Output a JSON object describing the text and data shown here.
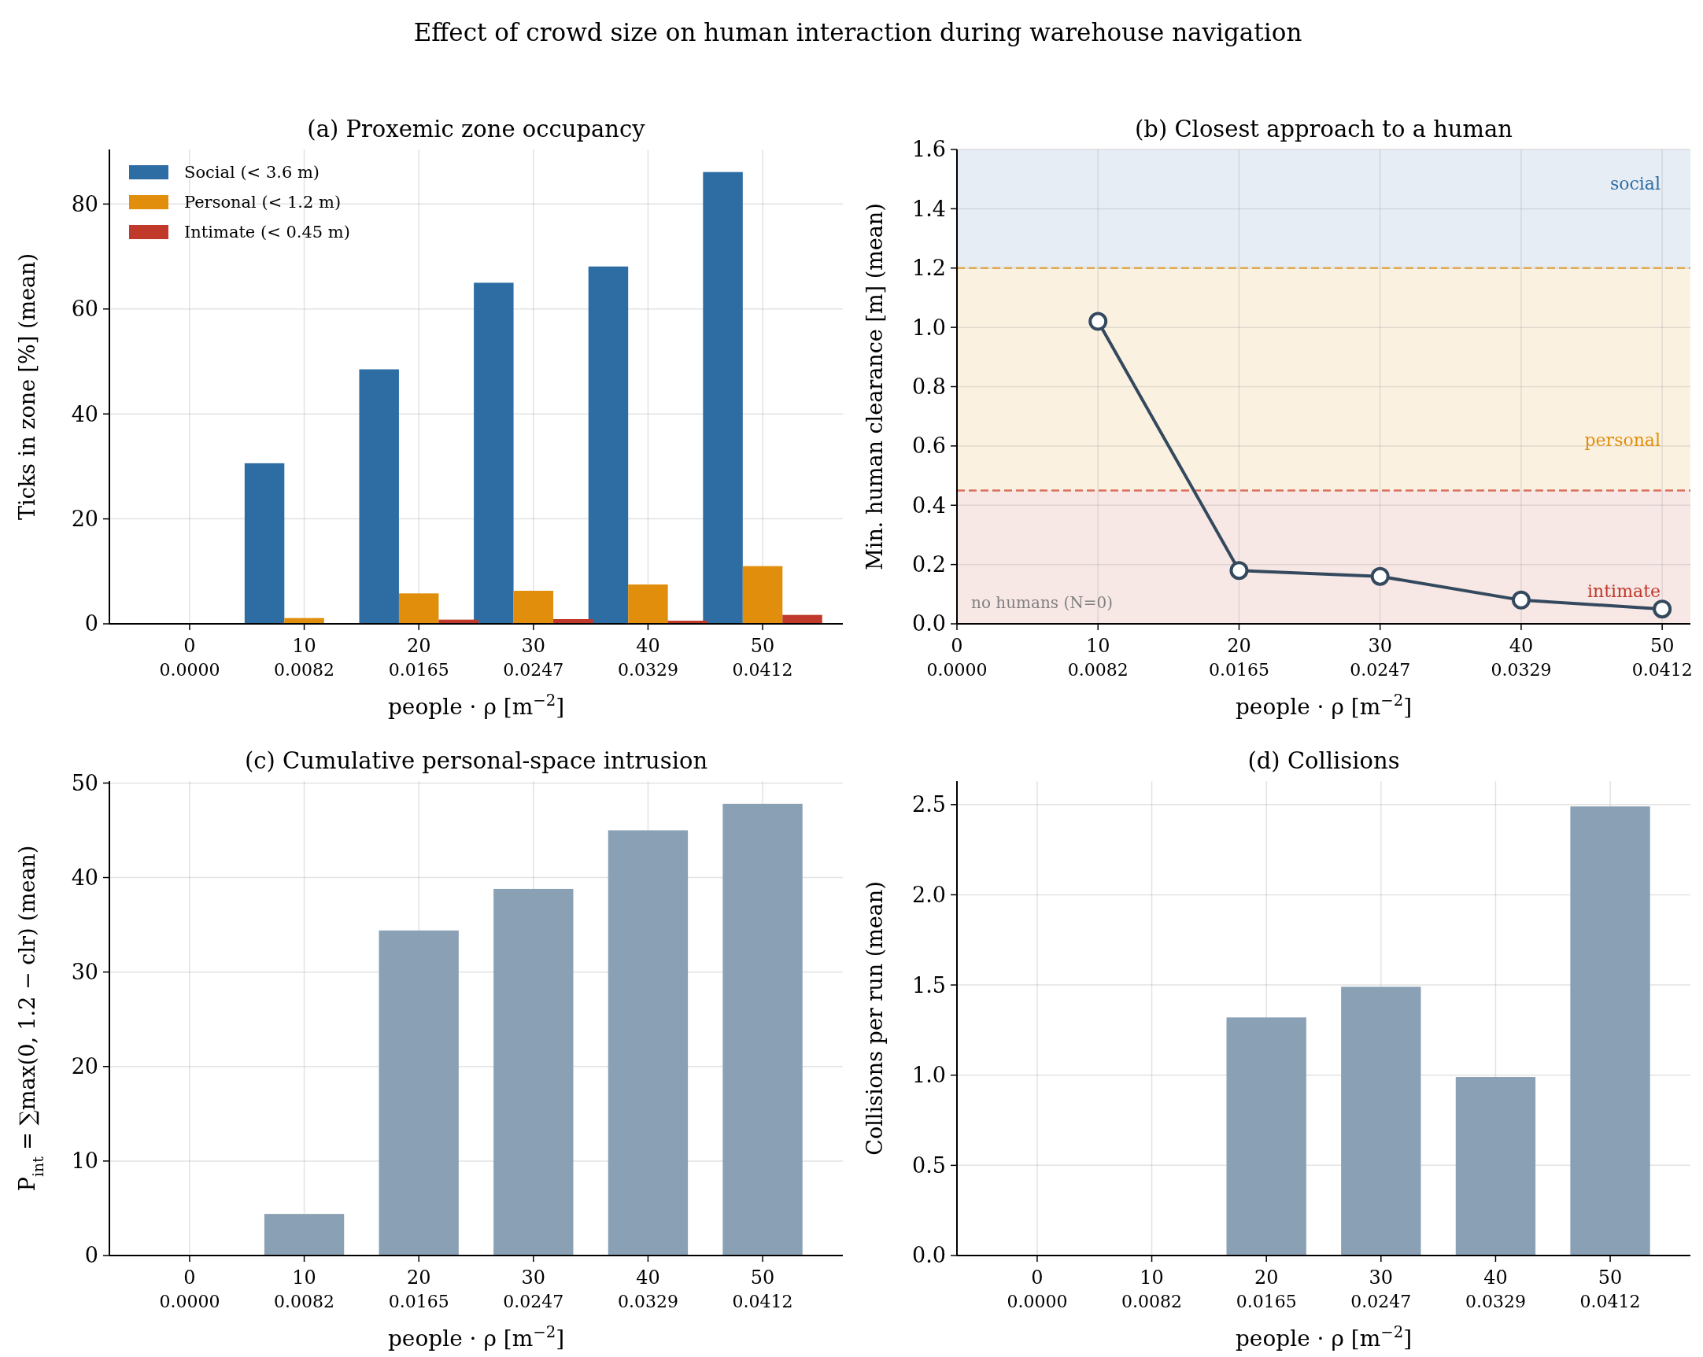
{
  "chart_data": [
    {
      "type": "bar",
      "title": "(a) Proxemic zone occupancy",
      "subtitle": "Effect of crowd size on human interaction during warehouse navigation",
      "xlabel": "people  ·  ρ [m$^{−2}$]",
      "ylabel": "Ticks in zone [%] (mean)",
      "categories": [
        "0\n0.0000",
        "10\n0.0082",
        "20\n0.0165",
        "30\n0.0247",
        "40\n0.0329",
        "50\n0.0412"
      ],
      "series": [
        {
          "name": "Social (< 3.6 m)",
          "color": "#2e6da4",
          "values": [
            0,
            30.6,
            48.5,
            65.0,
            68.1,
            86.1
          ]
        },
        {
          "name": "Personal (< 1.2 m)",
          "color": "#e08e0b",
          "values": [
            0,
            1.1,
            5.8,
            6.3,
            7.5,
            11.0
          ]
        },
        {
          "name": "Intimate (< 0.45 m)",
          "color": "#c0392b",
          "values": [
            0,
            0,
            0.8,
            0.9,
            0.6,
            1.7
          ]
        }
      ],
      "ylim": [
        0,
        90.4
      ],
      "yticks": [
        0,
        20,
        40,
        60,
        80
      ],
      "grid": true,
      "legend": "top left"
    },
    {
      "type": "line",
      "title": "(b) Closest approach to a human",
      "xlabel": "people  ·  ρ [m$^{−2}$]",
      "ylabel": "Min. human clearance [m] (mean)",
      "categories": [
        "0\n0.0000",
        "10\n0.0082",
        "20\n0.0165",
        "30\n0.0247",
        "40\n0.0329",
        "50\n0.0412"
      ],
      "series": [
        {
          "color": "#34495e",
          "values": [
            null,
            1.02,
            0.18,
            0.16,
            0.08,
            0.05
          ]
        }
      ],
      "ylim": [
        0,
        1.6
      ],
      "yticks": [
        {
          "value": 0,
          "label": "0.0"
        },
        {
          "value": 0.2,
          "label": "0.2"
        },
        {
          "value": 0.4,
          "label": "0.4"
        },
        {
          "value": 0.6,
          "label": "0.6"
        },
        {
          "value": 0.8,
          "label": "0.8"
        },
        {
          "value": 1,
          "label": "1.0"
        },
        {
          "value": 1.2,
          "label": "1.2"
        },
        {
          "value": 1.4,
          "label": "1.4"
        },
        {
          "value": 1.6,
          "label": "1.6"
        }
      ],
      "bands": [
        {
          "axis": "y",
          "from": 1.2,
          "to": 1.6,
          "label": "social",
          "color": "#2e6da4"
        },
        {
          "axis": "y",
          "from": 0.45,
          "to": 1.2,
          "label": "personal",
          "color": "#e08e0b"
        },
        {
          "axis": "y",
          "from": 0,
          "to": 0.45,
          "label": "intimate",
          "color": "#c0392b"
        }
      ],
      "ref_lines": [
        {
          "axis": "y",
          "value": 1.2,
          "color": "#e0a850",
          "line_style": "dashed"
        },
        {
          "axis": "y",
          "value": 0.45,
          "color": "#d9705a",
          "line_style": "dashed"
        }
      ],
      "annotations": [
        "no humans (N=0)"
      ],
      "grid": true,
      "marker": "circle",
      "line_style": "solid"
    },
    {
      "type": "bar",
      "title": "(c) Cumulative personal-space intrusion",
      "xlabel": "people  ·  ρ [m$^{−2}$]",
      "ylabel": "P$_{int}$ = ∑max(0, 1.2 − clr) (mean)",
      "categories": [
        "0\n0.0000",
        "10\n0.0082",
        "20\n0.0165",
        "30\n0.0247",
        "40\n0.0329",
        "50\n0.0412"
      ],
      "series": [
        {
          "color": "#8aa0b4",
          "values": [
            0,
            4.4,
            34.4,
            38.8,
            45.0,
            47.8
          ]
        }
      ],
      "ylim": [
        0,
        50.2
      ],
      "yticks": [
        0,
        10,
        20,
        30,
        40,
        50
      ],
      "grid": true
    },
    {
      "type": "bar",
      "title": "(d) Collisions",
      "xlabel": "people  ·  ρ [m$^{−2}$]",
      "ylabel": "Collisions per run (mean)",
      "categories": [
        "0\n0.0000",
        "10\n0.0082",
        "20\n0.0165",
        "30\n0.0247",
        "40\n0.0329",
        "50\n0.0412"
      ],
      "series": [
        {
          "color": "#8aa0b4",
          "values": [
            0,
            0,
            1.32,
            1.49,
            0.99,
            2.49
          ]
        }
      ],
      "ylim": [
        0,
        2.63
      ],
      "yticks": [
        {
          "value": 0,
          "label": "0.0"
        },
        {
          "value": 0.5,
          "label": "0.5"
        },
        {
          "value": 1,
          "label": "1.0"
        },
        {
          "value": 1.5,
          "label": "1.5"
        },
        {
          "value": 2,
          "label": "2.0"
        },
        {
          "value": 2.5,
          "label": "2.5"
        }
      ],
      "grid": true
    }
  ]
}
